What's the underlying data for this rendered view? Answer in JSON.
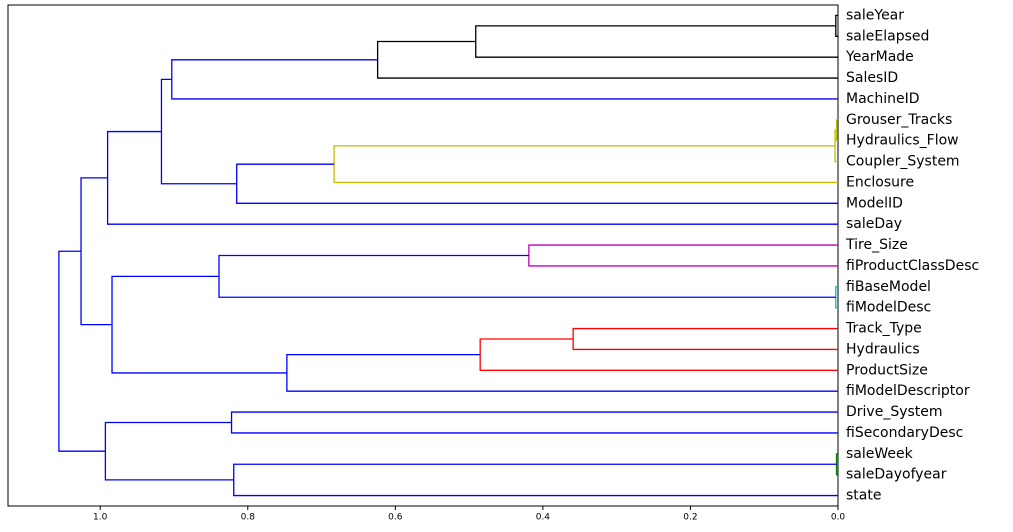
{
  "chart_data": {
    "type": "dendrogram",
    "xlim": [
      1.125,
      0
    ],
    "xticks": [
      {
        "value": 1.0,
        "label": "1.0"
      },
      {
        "value": 0.8,
        "label": "0.8"
      },
      {
        "value": 0.6,
        "label": "0.6"
      },
      {
        "value": 0.4,
        "label": "0.4"
      },
      {
        "value": 0.2,
        "label": "0.2"
      },
      {
        "value": 0.0,
        "label": "0.0"
      }
    ],
    "tree": {
      "height": 1.056,
      "color": "#0000ff",
      "children": [
        {
          "height": 1.026,
          "color": "#0000ff",
          "children": [
            {
              "height": 0.99,
              "color": "#0000ff",
              "children": [
                {
                  "height": 0.917,
                  "color": "#0000ff",
                  "children": [
                    {
                      "height": 0.903,
                      "color": "#0000ff",
                      "children": [
                        {
                          "height": 0.624,
                          "color": "#000000",
                          "children": [
                            {
                              "height": 0.491,
                              "color": "#000000",
                              "children": [
                                {
                                  "height": 0.003,
                                  "color": "#000000",
                                  "children": [
                                    {
                                      "label": "saleYear"
                                    },
                                    {
                                      "label": "saleElapsed"
                                    }
                                  ]
                                },
                                {
                                  "label": "YearMade"
                                }
                              ]
                            },
                            {
                              "label": "SalesID"
                            }
                          ]
                        },
                        {
                          "label": "MachineID"
                        }
                      ]
                    },
                    {
                      "height": 0.815,
                      "color": "#0000ff",
                      "children": [
                        {
                          "height": 0.683,
                          "color": "#bfbf00",
                          "children": [
                            {
                              "height": 0.004,
                              "color": "#bfbf00",
                              "children": [
                                {
                                  "height": 0.002,
                                  "color": "#bfbf00",
                                  "children": [
                                    {
                                      "label": "Grouser_Tracks"
                                    },
                                    {
                                      "label": "Hydraulics_Flow"
                                    }
                                  ]
                                },
                                {
                                  "label": "Coupler_System"
                                }
                              ]
                            },
                            {
                              "label": "Enclosure"
                            }
                          ]
                        },
                        {
                          "label": "ModelID"
                        }
                      ]
                    }
                  ]
                },
                {
                  "label": "saleDay"
                }
              ]
            },
            {
              "height": 0.984,
              "color": "#0000ff",
              "children": [
                {
                  "height": 0.839,
                  "color": "#0000ff",
                  "children": [
                    {
                      "height": 0.419,
                      "color": "#bf00bf",
                      "children": [
                        {
                          "label": "Tire_Size"
                        },
                        {
                          "label": "fiProductClassDesc"
                        }
                      ]
                    },
                    {
                      "height": 0.003,
                      "color": "#00bfbf",
                      "children": [
                        {
                          "label": "fiBaseModel"
                        },
                        {
                          "label": "fiModelDesc"
                        }
                      ]
                    }
                  ]
                },
                {
                  "height": 0.747,
                  "color": "#0000ff",
                  "children": [
                    {
                      "height": 0.485,
                      "color": "#ff0000",
                      "children": [
                        {
                          "height": 0.359,
                          "color": "#ff0000",
                          "children": [
                            {
                              "label": "Track_Type"
                            },
                            {
                              "label": "Hydraulics"
                            }
                          ]
                        },
                        {
                          "label": "ProductSize"
                        }
                      ]
                    },
                    {
                      "label": "fiModelDescriptor"
                    }
                  ]
                }
              ]
            }
          ]
        },
        {
          "height": 0.993,
          "color": "#0000ff",
          "children": [
            {
              "height": 0.822,
              "color": "#0000ff",
              "children": [
                {
                  "label": "Drive_System"
                },
                {
                  "label": "fiSecondaryDesc"
                }
              ]
            },
            {
              "height": 0.819,
              "color": "#0000ff",
              "children": [
                {
                  "height": 0.002,
                  "color": "#008000",
                  "children": [
                    {
                      "label": "saleWeek"
                    },
                    {
                      "label": "saleDayofyear"
                    }
                  ]
                },
                {
                  "label": "state"
                }
              ]
            }
          ]
        }
      ]
    }
  }
}
